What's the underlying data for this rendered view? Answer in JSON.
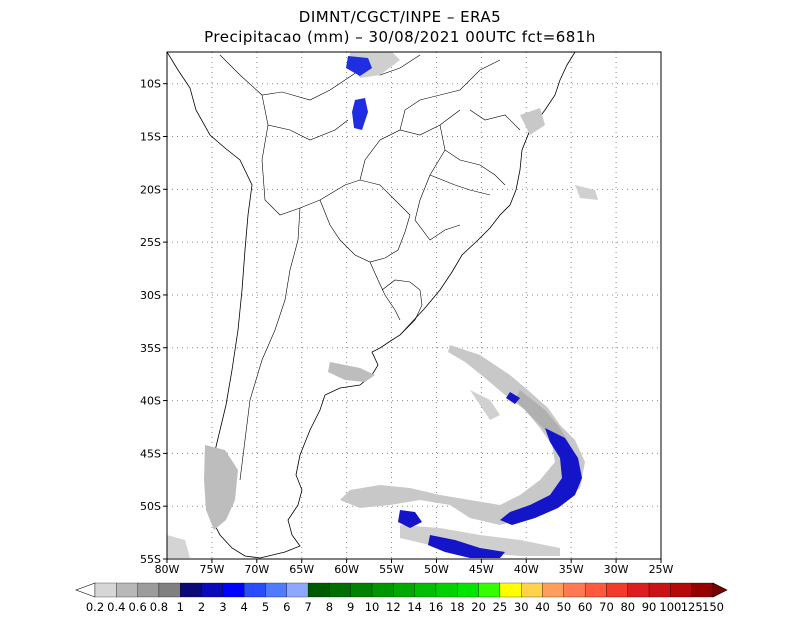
{
  "header": {
    "line1": "DIMNT/CGCT/INPE –  ERA5",
    "line2": "Precipitacao (mm) – 30/08/2021 00UTC fct=681h"
  },
  "map": {
    "lat_labels": [
      "10S",
      "15S",
      "20S",
      "25S",
      "30S",
      "35S",
      "40S",
      "45S",
      "50S",
      "55S"
    ],
    "lon_labels": [
      "80W",
      "75W",
      "70W",
      "65W",
      "60W",
      "55W",
      "50W",
      "45W",
      "40W",
      "35W",
      "30W",
      "25W"
    ],
    "lat_range": [
      -55,
      -7
    ],
    "lon_range": [
      -80,
      -25
    ]
  },
  "colorbar": {
    "labels": [
      "0.2",
      "0.4",
      "0.6",
      "0.8",
      "1",
      "2",
      "3",
      "4",
      "5",
      "6",
      "7",
      "8",
      "9",
      "10",
      "12",
      "14",
      "16",
      "18",
      "20",
      "25",
      "30",
      "40",
      "50",
      "60",
      "70",
      "80",
      "90",
      "100",
      "125",
      "150"
    ],
    "colors": [
      "#ffffff",
      "#d6d6d6",
      "#b8b8b8",
      "#9c9c9c",
      "#808080",
      "#0a0a78",
      "#0a0ab8",
      "#0000ff",
      "#2a4cff",
      "#4f7cff",
      "#8fa8ff",
      "#005a00",
      "#006e00",
      "#008200",
      "#009600",
      "#00aa00",
      "#00be00",
      "#00d200",
      "#00e600",
      "#33ff00",
      "#ffff00",
      "#ffd24b",
      "#ff9e5a",
      "#ff7a50",
      "#ff5a3c",
      "#f03c2a",
      "#dc1e1e",
      "#c81414",
      "#b40a0a",
      "#960000",
      "#780000"
    ]
  }
}
